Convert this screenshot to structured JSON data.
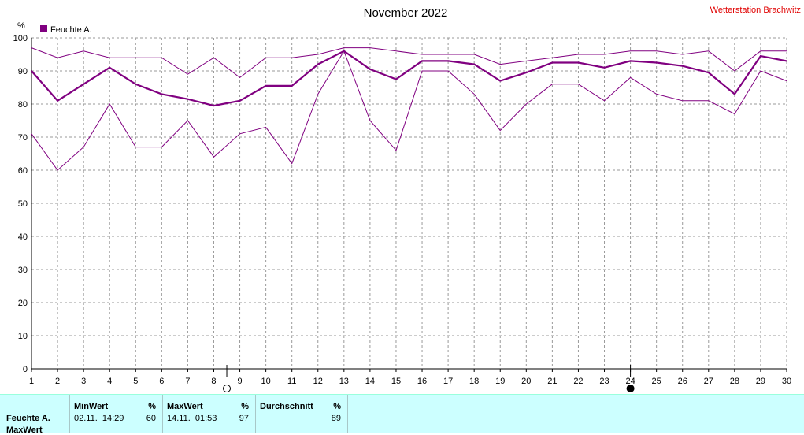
{
  "header": {
    "title": "November 2022",
    "station": "Wetterstation Brachwitz"
  },
  "chart_data": {
    "type": "line",
    "legend": "Feuchte A.",
    "unit_label": "%",
    "ylim": [
      0,
      100
    ],
    "y_ticks": [
      0,
      10,
      20,
      30,
      40,
      50,
      60,
      70,
      80,
      90,
      100
    ],
    "x": [
      1,
      2,
      3,
      4,
      5,
      6,
      7,
      8,
      9,
      10,
      11,
      12,
      13,
      14,
      15,
      16,
      17,
      18,
      19,
      20,
      21,
      22,
      23,
      24,
      25,
      26,
      27,
      28,
      29,
      30
    ],
    "grid": true,
    "series": [
      {
        "role": "avg",
        "values": [
          90,
          81,
          86,
          91,
          86,
          83,
          81.5,
          79.5,
          81,
          85.5,
          85.5,
          92,
          96,
          90.5,
          87.5,
          93,
          93,
          92,
          87,
          89.5,
          92.5,
          92.5,
          91,
          93,
          92.5,
          91.5,
          89.5,
          83,
          94.5,
          93
        ]
      },
      {
        "role": "max",
        "values": [
          97,
          94,
          96,
          94,
          94,
          94,
          89,
          94,
          88,
          94,
          94,
          95,
          97,
          97,
          96,
          95,
          95,
          95,
          92,
          93,
          94,
          95,
          95,
          96,
          96,
          95,
          96,
          90,
          96,
          96
        ]
      },
      {
        "role": "min",
        "values": [
          71,
          60,
          67,
          80,
          67,
          67,
          75,
          64,
          71,
          73,
          62,
          83,
          96,
          75,
          66,
          90,
          90,
          83,
          72,
          80,
          86,
          86,
          81,
          88,
          83,
          81,
          81,
          77,
          90,
          87
        ]
      }
    ],
    "markers": [
      {
        "x": 8.5,
        "type": "open-circle"
      },
      {
        "x": 24,
        "type": "filled-circle"
      }
    ],
    "colors": {
      "series": "#800080",
      "grid": "#9a9a9a",
      "station": "#e00000"
    }
  },
  "stats": {
    "row_label": "Feuchte A.",
    "row_label_2": "MaxWert",
    "min": {
      "header": "MinWert",
      "unit": "%",
      "date": "02.11.  14:29",
      "value": "60"
    },
    "max": {
      "header": "MaxWert",
      "unit": "%",
      "date": "14.11.  01:53",
      "value": "97"
    },
    "avg": {
      "header": "Durchschnitt",
      "unit": "%",
      "value": "89"
    }
  }
}
